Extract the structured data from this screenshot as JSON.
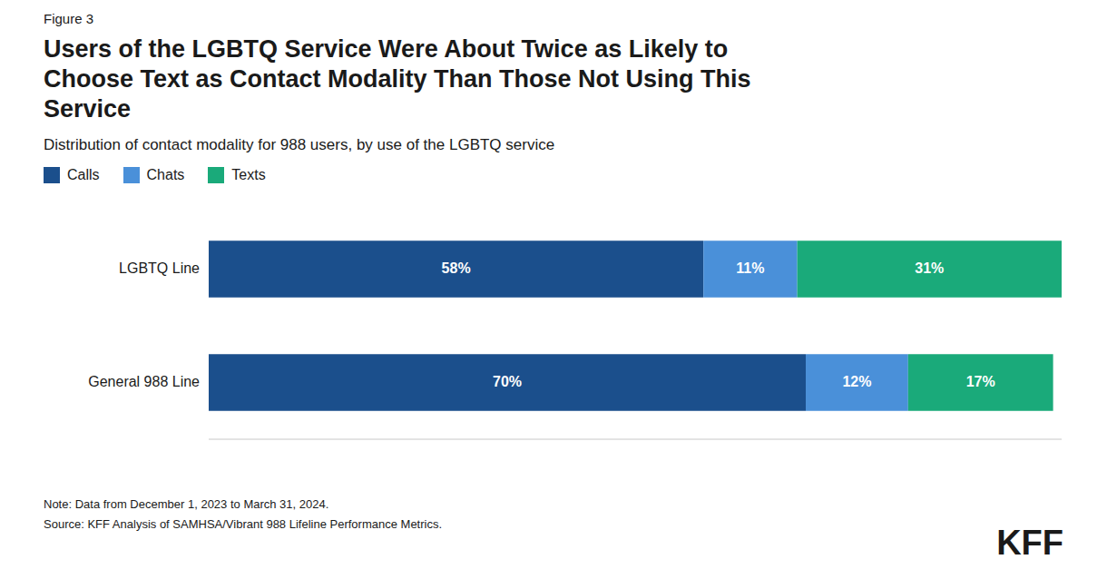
{
  "chart_data": {
    "type": "bar",
    "orientation": "horizontal",
    "stacked": true,
    "data_labels": true,
    "tick_labels": false,
    "grid": false,
    "legend": "top-left",
    "title": "Users of the LGBTQ Service Were About Twice as Likely to Choose Text as Contact Modality Than Those Not Using This Service",
    "subtitle": "Distribution of contact modality for 988 users, by use of the LGBTQ service",
    "annotations": [
      "Figure 3",
      "Note: Data from December 1, 2023 to March 31, 2024.",
      "Source: KFF Analysis of SAMHSA/Vibrant 988 Lifeline Performance Metrics.",
      "KFF"
    ],
    "categories": [
      "LGBTQ Line",
      "General 988 Line"
    ],
    "series": [
      {
        "name": "Calls",
        "color": "#1b4f8c",
        "values": [
          58,
          70
        ],
        "value_labels": [
          "58%",
          "70%"
        ]
      },
      {
        "name": "Chats",
        "color": "#4a90d9",
        "values": [
          11,
          12
        ],
        "value_labels": [
          "11%",
          "12%"
        ]
      },
      {
        "name": "Texts",
        "color": "#1aaa7a",
        "values": [
          31,
          17
        ],
        "value_labels": [
          "31%",
          "17%"
        ]
      }
    ],
    "xlim": [
      0,
      100
    ]
  }
}
